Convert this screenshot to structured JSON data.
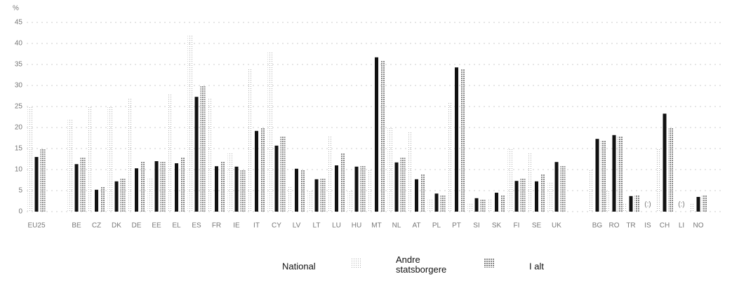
{
  "chart_data": {
    "type": "bar",
    "y_label": "%",
    "categories": [
      "EU25",
      "BE",
      "CZ",
      "DK",
      "DE",
      "EE",
      "EL",
      "ES",
      "FR",
      "IE",
      "IT",
      "CY",
      "LV",
      "LT",
      "LU",
      "HU",
      "MT",
      "NL",
      "AT",
      "PL",
      "PT",
      "SI",
      "SK",
      "FI",
      "SE",
      "UK",
      "BG",
      "RO",
      "TR",
      "IS",
      "CH",
      "LI",
      "NO"
    ],
    "series": [
      {
        "name": "National",
        "color": "#111111",
        "values": [
          13,
          11.3,
          5.2,
          7.2,
          10.3,
          12,
          11.5,
          27.3,
          10.8,
          10.7,
          19.2,
          15.7,
          10.2,
          7.7,
          11,
          10.7,
          36.7,
          11.7,
          7.7,
          4.3,
          34.3,
          3.2,
          4.5,
          7.3,
          7.2,
          11.8,
          17.3,
          18.2,
          3.7,
          null,
          23.3,
          null,
          3.5
        ],
        "value_labels": [
          null,
          null,
          null,
          null,
          null,
          null,
          null,
          null,
          null,
          null,
          null,
          null,
          null,
          null,
          null,
          null,
          null,
          null,
          null,
          null,
          null,
          null,
          null,
          null,
          null,
          null,
          null,
          null,
          null,
          "(:)",
          null,
          "(:)",
          null
        ]
      },
      {
        "name": "Andre statsborgere",
        "color": "#bbbbbb",
        "values": [
          25,
          22,
          25,
          25,
          27,
          8,
          28,
          42,
          27,
          14,
          34,
          38,
          6,
          5,
          18,
          5,
          10,
          20,
          19,
          3,
          26,
          2,
          3,
          15,
          14,
          7,
          10,
          5,
          2,
          null,
          15,
          null,
          2
        ]
      },
      {
        "name": "I alt",
        "color": "#999999",
        "values": [
          15,
          13,
          6,
          8,
          12,
          12,
          13,
          30,
          12,
          10,
          20,
          18,
          10,
          8,
          14,
          11,
          36,
          13,
          9,
          4,
          34,
          3,
          4,
          8,
          9,
          11,
          17,
          18,
          4,
          null,
          20,
          null,
          4
        ]
      }
    ],
    "ylim": [
      0,
      45
    ],
    "yticks": [
      0,
      5,
      10,
      15,
      20,
      25,
      30,
      35,
      40,
      45
    ],
    "grid": true
  }
}
